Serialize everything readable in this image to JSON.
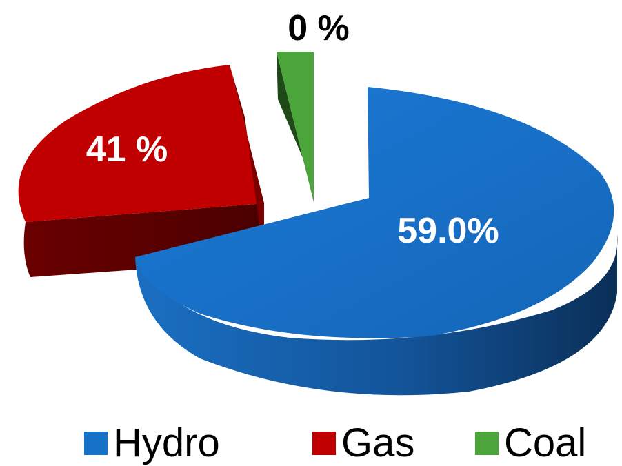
{
  "chart_data": {
    "type": "pie",
    "title": "",
    "exploded": true,
    "three_d": true,
    "slices": [
      {
        "name": "Hydro",
        "value": 59.0,
        "label": "59.0%",
        "color": "#1673C8",
        "side_color": "#0C3F73"
      },
      {
        "name": "Gas",
        "value": 41.0,
        "label": "41 %",
        "color": "#C00000",
        "side_color": "#5A0000"
      },
      {
        "name": "Coal",
        "value": 0.0,
        "label": "0 %",
        "color": "#4CA53A",
        "side_color": "#1F4A18"
      }
    ],
    "legend_position": "bottom"
  },
  "legend": {
    "items": [
      {
        "label": "Hydro",
        "color": "#1673C8"
      },
      {
        "label": "Gas",
        "color": "#C00000"
      },
      {
        "label": "Coal",
        "color": "#4CA53A"
      }
    ]
  }
}
